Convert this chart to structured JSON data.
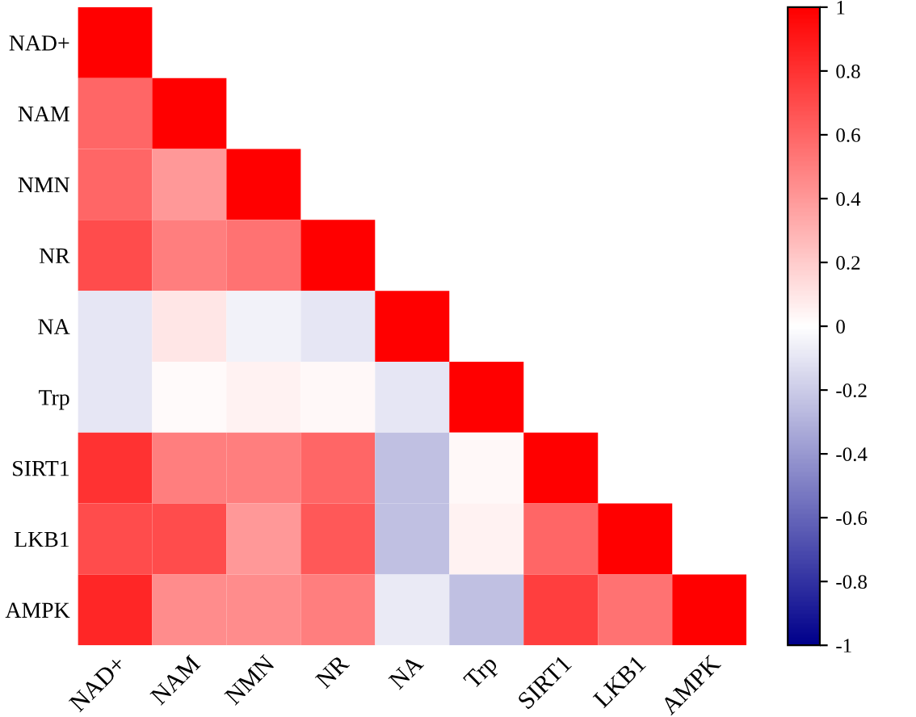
{
  "chart_data": {
    "type": "heatmap",
    "categories": [
      "NAD+",
      "NAM",
      "NMN",
      "NR",
      "NA",
      "Trp",
      "SIRT1",
      "LKB1",
      "AMPK"
    ],
    "y_categories": [
      "NAD+",
      "NAM",
      "NMN",
      "NR",
      "NA",
      "Trp",
      "SIRT1",
      "LKB1",
      "AMPK"
    ],
    "cells": [
      [
        1,
        null,
        null,
        null,
        null,
        null,
        null,
        null,
        null
      ],
      [
        0.6,
        1,
        null,
        null,
        null,
        null,
        null,
        null,
        null
      ],
      [
        0.6,
        0.4,
        1,
        null,
        null,
        null,
        null,
        null,
        null
      ],
      [
        0.7,
        0.5,
        0.55,
        1,
        null,
        null,
        null,
        null,
        null
      ],
      [
        -0.1,
        0.1,
        -0.05,
        -0.1,
        1,
        null,
        null,
        null,
        null
      ],
      [
        -0.1,
        0.02,
        0.05,
        0.03,
        -0.1,
        1,
        null,
        null,
        null
      ],
      [
        0.8,
        0.5,
        0.5,
        0.6,
        -0.25,
        0.03,
        1,
        null,
        null
      ],
      [
        0.7,
        0.7,
        0.4,
        0.65,
        -0.25,
        0.05,
        0.6,
        1,
        null
      ],
      [
        0.85,
        0.45,
        0.45,
        0.5,
        -0.08,
        -0.25,
        0.75,
        0.55,
        1
      ]
    ],
    "clim": [
      -1,
      1
    ],
    "cticks": [
      -1,
      -0.8,
      -0.6,
      -0.4,
      -0.2,
      0,
      0.2,
      0.4,
      0.6,
      0.8,
      1
    ]
  }
}
